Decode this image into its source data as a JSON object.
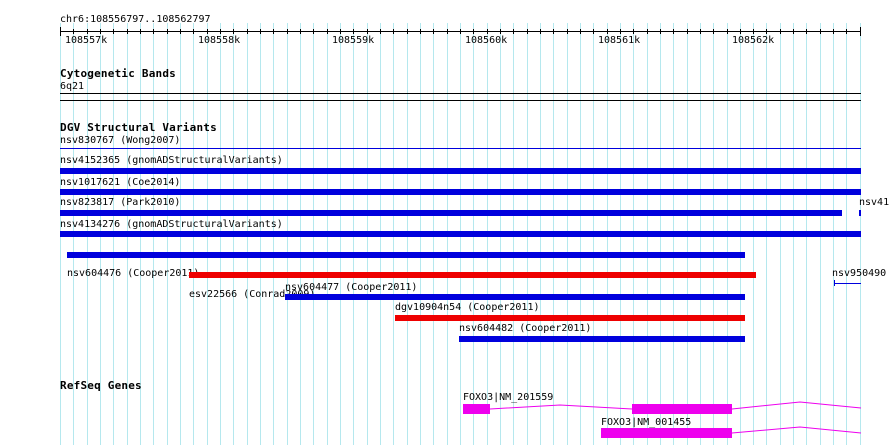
{
  "location": "chr6:108556797..108562797",
  "ruler_ticks": [
    "108557k",
    "108558k",
    "108559k",
    "108560k",
    "108561k",
    "108562k"
  ],
  "tracks": {
    "cytoband": {
      "title": "Cytogenetic Bands",
      "band": "6q21"
    },
    "dgv": {
      "title": "DGV Structural Variants",
      "features": [
        {
          "id": "nsv830767",
          "label": "nsv830767 (Wong2007)",
          "color": "#0000dd",
          "thin": true
        },
        {
          "id": "nsv4152365",
          "label": "nsv4152365 (gnomADStructuralVariants)",
          "color": "#0000dd"
        },
        {
          "id": "nsv1017621",
          "label": "nsv1017621 (Coe2014)",
          "color": "#0000dd"
        },
        {
          "id": "nsv823817",
          "label": "nsv823817 (Park2010)",
          "color": "#0000dd"
        },
        {
          "id": "nsv41",
          "label": "nsv41",
          "color": "#0000dd"
        },
        {
          "id": "nsv4134276",
          "label": "nsv4134276 (gnomADStructuralVariants)",
          "color": "#0000dd"
        },
        {
          "id": "nsv604476",
          "label": "nsv604476 (Cooper2011)",
          "color": "#0000dd"
        },
        {
          "id": "nsv950490",
          "label": "nsv950490",
          "color": "#0000dd"
        },
        {
          "id": "esv22566",
          "label": "esv22566 (Conrad2009)",
          "color": "#ee0000"
        },
        {
          "id": "nsv604477",
          "label": "nsv604477 (Cooper2011)",
          "color": "#0000dd"
        },
        {
          "id": "dgv10904n54",
          "label": "dgv10904n54 (Cooper2011)",
          "color": "#ee0000"
        },
        {
          "id": "nsv604482",
          "label": "nsv604482 (Cooper2011)",
          "color": "#0000dd"
        }
      ]
    },
    "refseq": {
      "title": "RefSeq Genes",
      "transcripts": [
        {
          "label": "FOXO3|NM_201559",
          "color": "#ee00ee"
        },
        {
          "label": "FOXO3|NM_001455",
          "color": "#ee00ee"
        }
      ]
    }
  }
}
